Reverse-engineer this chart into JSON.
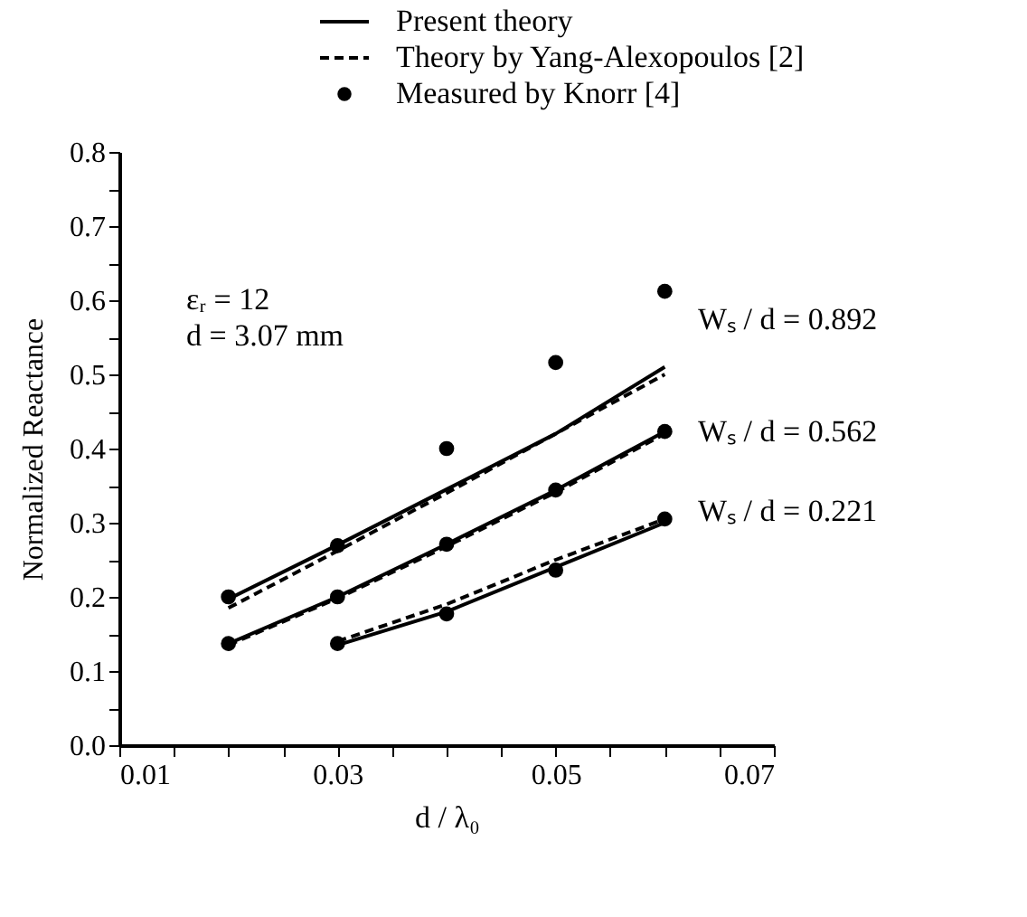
{
  "chart_data": {
    "type": "line",
    "xlabel": "d / λ₀",
    "ylabel": "Normalized Reactance",
    "xlim": [
      0.01,
      0.07
    ],
    "ylim": [
      0,
      0.8
    ],
    "xticks": [
      0.01,
      {
        "value": 0.015,
        "label": null
      },
      {
        "value": 0.02,
        "label": null
      },
      {
        "value": 0.025,
        "label": null
      },
      0.03,
      {
        "value": 0.035,
        "label": null
      },
      {
        "value": 0.04,
        "label": null
      },
      {
        "value": 0.045,
        "label": null
      },
      0.05,
      {
        "value": 0.055,
        "label": null
      },
      {
        "value": 0.06,
        "label": null
      },
      {
        "value": 0.065,
        "label": null
      },
      0.07
    ],
    "yticks": [
      {
        "value": 0,
        "label": "0.0"
      },
      {
        "value": 0.05,
        "label": null
      },
      0.1,
      {
        "value": 0.15,
        "label": null
      },
      0.2,
      {
        "value": 0.25,
        "label": null
      },
      0.3,
      {
        "value": 0.35,
        "label": null
      },
      0.4,
      {
        "value": 0.45,
        "label": null
      },
      0.5,
      {
        "value": 0.55,
        "label": null
      },
      0.6,
      {
        "value": 0.65,
        "label": null
      },
      0.7,
      {
        "value": 0.75,
        "label": null
      },
      0.8
    ],
    "grid": false,
    "legend": "top",
    "series": [
      {
        "name": "Present theory",
        "line_style": "solid",
        "color": "#000000",
        "x": [
          0.02,
          0.03,
          0.04,
          0.05,
          0.06
        ],
        "values": [
          0.197,
          0.27,
          0.345,
          0.42,
          0.51
        ]
      },
      {
        "name": "Theory by Yang-Alexopoulos [2]",
        "type": "line",
        "line_style": "dashed",
        "color": "#000000",
        "x": [
          0.02,
          0.03,
          0.04,
          0.05,
          0.06
        ],
        "values": [
          0.185,
          0.262,
          0.34,
          0.42,
          0.5
        ]
      },
      {
        "name": "Measured by Knorr [4]",
        "type": "scatter",
        "marker": "circle",
        "color": "#000000",
        "x": [
          0.02,
          0.03,
          0.04,
          0.05,
          0.06
        ],
        "values": [
          0.2,
          0.269,
          0.4,
          0.516,
          0.612
        ]
      },
      {
        "line_style": "solid",
        "color": "#000000",
        "x": [
          0.02,
          0.03,
          0.04,
          0.05,
          0.06
        ],
        "values": [
          0.137,
          0.2,
          0.271,
          0.344,
          0.423
        ]
      },
      {
        "type": "line",
        "line_style": "dashed",
        "color": "#000000",
        "x": [
          0.02,
          0.03,
          0.04,
          0.05,
          0.06
        ],
        "values": [
          0.135,
          0.198,
          0.268,
          0.341,
          0.42
        ]
      },
      {
        "type": "scatter",
        "marker": "circle",
        "color": "#000000",
        "x": [
          0.02,
          0.03,
          0.04,
          0.05,
          0.06
        ],
        "values": [
          0.137,
          0.2,
          0.271,
          0.344,
          0.423
        ]
      },
      {
        "line_style": "solid",
        "color": "#000000",
        "x": [
          0.03,
          0.04,
          0.05,
          0.06
        ],
        "values": [
          0.135,
          0.18,
          0.24,
          0.3
        ]
      },
      {
        "type": "line",
        "line_style": "dashed",
        "color": "#000000",
        "x": [
          0.03,
          0.04,
          0.05,
          0.06
        ],
        "values": [
          0.14,
          0.19,
          0.25,
          0.305
        ]
      },
      {
        "type": "scatter",
        "marker": "circle",
        "color": "#000000",
        "x": [
          0.03,
          0.04,
          0.05,
          0.06
        ],
        "values": [
          0.137,
          0.177,
          0.236,
          0.305
        ]
      }
    ],
    "annotations": [
      "εᵣ = 12",
      "d = 3.07 mm",
      "Wₛ / d = 0.892",
      "Wₛ / d = 0.562",
      "Wₛ / d = 0.221"
    ]
  }
}
